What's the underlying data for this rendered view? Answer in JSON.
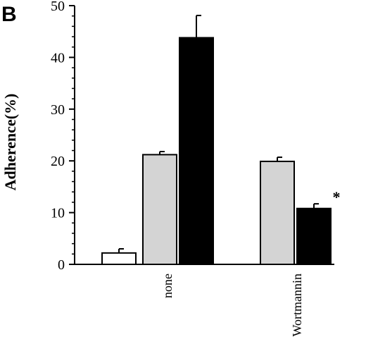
{
  "panel_label": "B",
  "chart_data": {
    "type": "bar",
    "title": "",
    "ylabel": "Adherence(%)",
    "xlabel": "",
    "ylim": [
      0,
      50
    ],
    "yticks": [
      0,
      10,
      20,
      30,
      40,
      50
    ],
    "groups": [
      {
        "label": "none",
        "bars": [
          {
            "value": 2.2,
            "error": 0.8,
            "color": "#ffffff"
          },
          {
            "value": 21.2,
            "error": 0.6,
            "color": "#d4d4d4"
          },
          {
            "value": 43.8,
            "error": 4.3,
            "color": "#000000"
          }
        ]
      },
      {
        "label": "Wortmannin",
        "bars": [
          {
            "value": 19.9,
            "error": 0.8,
            "color": "#d4d4d4"
          },
          {
            "value": 10.8,
            "error": 0.9,
            "color": "#000000",
            "annotation": "*"
          }
        ]
      }
    ]
  }
}
